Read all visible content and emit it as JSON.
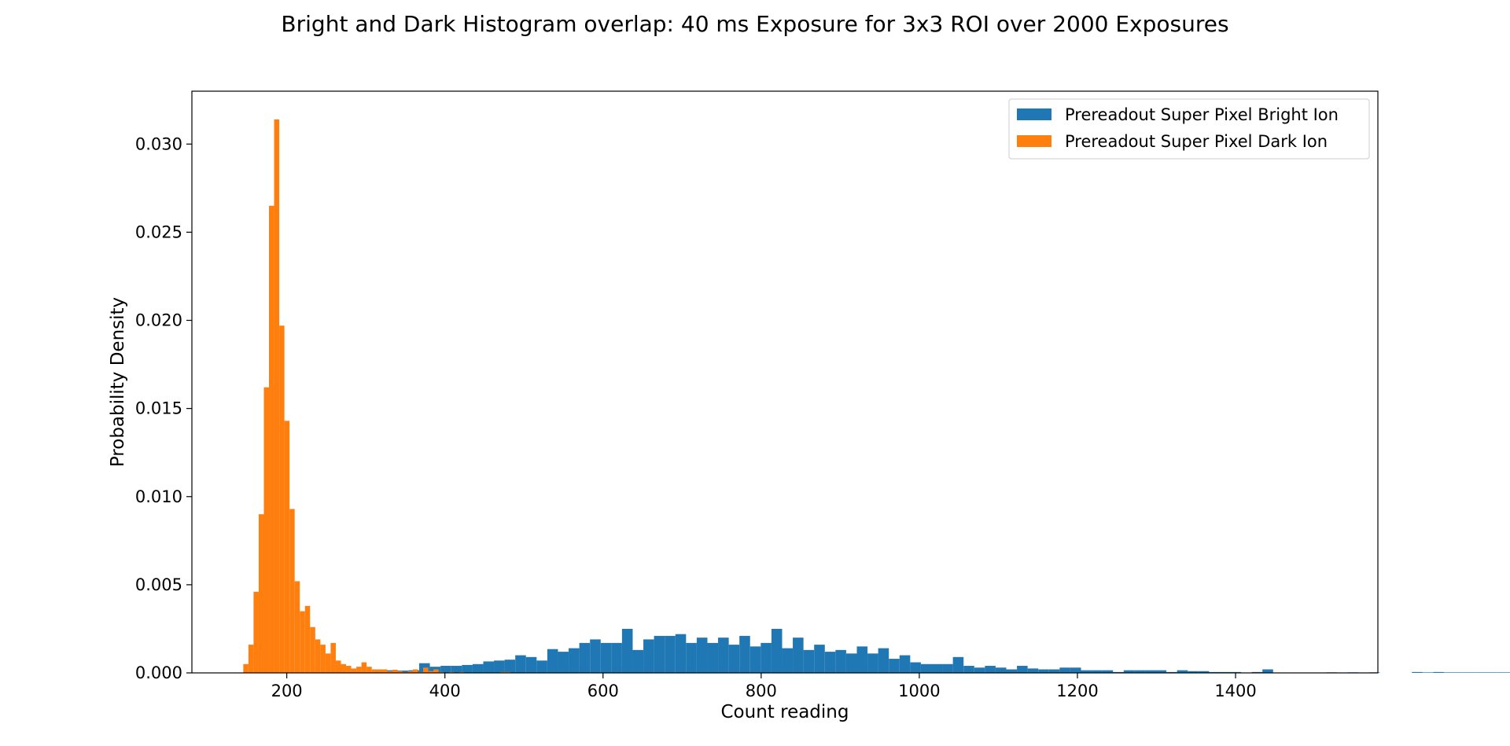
{
  "chart_data": {
    "type": "bar",
    "title": "Bright and Dark Histogram overlap: 40 ms Exposure for 3x3 ROI over 2000 Exposures",
    "xlabel": "Count reading",
    "ylabel": "Probability Density",
    "xlim": [
      80,
      1580
    ],
    "ylim": [
      0,
      0.033
    ],
    "xticks": [
      200,
      400,
      600,
      800,
      1000,
      1200,
      1400
    ],
    "yticks": [
      0.0,
      0.005,
      0.01,
      0.015,
      0.02,
      0.025,
      0.03
    ],
    "xtick_labels": [
      "200",
      "400",
      "600",
      "800",
      "1000",
      "1200",
      "1400"
    ],
    "ytick_labels": [
      "0.000",
      "0.005",
      "0.010",
      "0.015",
      "0.020",
      "0.025",
      "0.030"
    ],
    "legend_position": "top-right",
    "grid": false,
    "series": [
      {
        "name": "Prereadout Super Pixel Bright Ion",
        "color": "#1f77b4",
        "bin_start": 300,
        "bin_width": 13.5,
        "values": [
          3e-05,
          0.00015,
          0.00015,
          0.00013,
          0.00015,
          0.00055,
          0.00035,
          0.0004,
          0.0004,
          0.00045,
          0.0005,
          0.00065,
          0.0007,
          0.00075,
          0.001,
          0.0009,
          0.0007,
          0.00135,
          0.0012,
          0.0014,
          0.0017,
          0.0019,
          0.0017,
          0.0017,
          0.0025,
          0.0013,
          0.0019,
          0.0021,
          0.0021,
          0.0022,
          0.0017,
          0.002,
          0.0017,
          0.002,
          0.0016,
          0.0021,
          0.0015,
          0.0017,
          0.0025,
          0.0014,
          0.002,
          0.0013,
          0.0016,
          0.0012,
          0.0013,
          0.0011,
          0.0015,
          0.0011,
          0.0014,
          0.0008,
          0.001,
          0.0006,
          0.0005,
          0.0005,
          0.0005,
          0.0009,
          0.0004,
          0.0003,
          0.0004,
          0.0003,
          0.0002,
          0.0004,
          0.00025,
          0.0002,
          0.0002,
          0.0003,
          0.0003,
          0.00015,
          0.00015,
          0.00015,
          5e-05,
          0.00015,
          0.00015,
          0.00015,
          0.00015,
          5e-05,
          0.00015,
          0.0001,
          0.0001,
          5e-05,
          5e-05,
          5e-05,
          0.0,
          5e-05,
          0.0002,
          0.0,
          0.0,
          0.0,
          0.0,
          0.0,
          3e-05,
          0.0,
          3e-05,
          0.0,
          3e-05,
          0.0,
          0.0,
          0.0,
          5e-05,
          3e-05,
          5e-05,
          3e-05,
          3e-05,
          3e-05,
          3e-05,
          3e-05,
          3e-05,
          3e-05
        ]
      },
      {
        "name": "Prereadout Super Pixel Dark Ion",
        "color": "#ff7f0e",
        "bin_start": 145,
        "bin_width": 6.5,
        "values": [
          0.0005,
          0.0016,
          0.0046,
          0.009,
          0.0162,
          0.0265,
          0.0314,
          0.0197,
          0.0143,
          0.0093,
          0.0052,
          0.0035,
          0.0038,
          0.0026,
          0.0019,
          0.0016,
          0.0011,
          0.0017,
          0.0007,
          0.0005,
          0.0004,
          0.00025,
          0.00035,
          0.0006,
          0.00035,
          0.0002,
          0.0002,
          0.0002,
          0.0001,
          0.00018,
          0.0001,
          5e-05,
          0.0001,
          0.0002,
          5e-05,
          0.0003,
          0.0001,
          0.0002,
          5e-05,
          0.0,
          5e-05,
          0.0,
          5e-05,
          0.0,
          0.0,
          0.0,
          0.0,
          0.0,
          0.0,
          0.0,
          5e-05,
          5e-05,
          0.0,
          0.0,
          0.0,
          0.0,
          0.0,
          0.0,
          0.0,
          0.0,
          0.0,
          0.0,
          0.0,
          0.0,
          0.0,
          0.0
        ]
      }
    ]
  }
}
